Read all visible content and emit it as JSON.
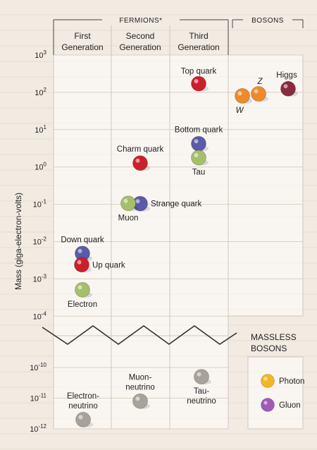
{
  "header": {
    "fermions": "FERMIONS*",
    "bosons": "BOSONS",
    "generations": [
      [
        "First",
        "Generation"
      ],
      [
        "Second",
        "Generation"
      ],
      [
        "Third",
        "Generation"
      ]
    ],
    "massless_title": [
      "MASSLESS",
      "BOSONS"
    ]
  },
  "chart_data": {
    "type": "scatter",
    "ylabel": "Mass (giga-electron-volts)",
    "yscale": "log",
    "upper_range": [
      0.0001,
      1000
    ],
    "lower_range": [
      1e-12,
      1e-10
    ],
    "ticks": [
      {
        "base": "10",
        "exp": "3",
        "value": 1000
      },
      {
        "base": "10",
        "exp": "2",
        "value": 100
      },
      {
        "base": "10",
        "exp": "1",
        "value": 10
      },
      {
        "base": "10",
        "exp": "0",
        "value": 1
      },
      {
        "base": "10",
        "exp": "-1",
        "value": 0.1
      },
      {
        "base": "10",
        "exp": "-2",
        "value": 0.01
      },
      {
        "base": "10",
        "exp": "-3",
        "value": 0.001
      },
      {
        "base": "10",
        "exp": "-4",
        "value": 0.0001
      },
      {
        "base": "10",
        "exp": "-10",
        "value": 1e-10
      },
      {
        "base": "10",
        "exp": "-11",
        "value": 1e-11
      },
      {
        "base": "10",
        "exp": "-12",
        "value": 1e-12
      }
    ],
    "columns": [
      "First Generation",
      "Second Generation",
      "Third Generation",
      "Bosons"
    ],
    "particles": [
      {
        "name": "Down quark",
        "label": [
          "Down quark"
        ],
        "column": 0,
        "mass": 0.0048,
        "color": "#5a5aa8",
        "anchor": "above"
      },
      {
        "name": "Up quark",
        "label": [
          "Up quark"
        ],
        "column": 0,
        "mass": 0.0024,
        "color": "#cc1f2e",
        "anchor": "right"
      },
      {
        "name": "Electron",
        "label": [
          "Electron"
        ],
        "column": 0,
        "mass": 0.000511,
        "color": "#a6bf6a",
        "anchor": "below"
      },
      {
        "name": "Charm quark",
        "label": [
          "Charm quark"
        ],
        "column": 1,
        "mass": 1.27,
        "color": "#cc1f2e",
        "anchor": "above"
      },
      {
        "name": "Strange quark",
        "label": [
          "Strange quark"
        ],
        "column": 1,
        "mass": 0.104,
        "color": "#5a5aa8",
        "anchor": "right"
      },
      {
        "name": "Muon",
        "label": [
          "Muon"
        ],
        "column": 1,
        "mass": 0.1057,
        "color": "#a6bf6a",
        "anchor": "below"
      },
      {
        "name": "Top quark",
        "label": [
          "Top quark"
        ],
        "column": 2,
        "mass": 171,
        "color": "#cc1f2e",
        "anchor": "above"
      },
      {
        "name": "Bottom quark",
        "label": [
          "Bottom quark"
        ],
        "column": 2,
        "mass": 4.2,
        "color": "#5a5aa8",
        "anchor": "above"
      },
      {
        "name": "Tau",
        "label": [
          "Tau"
        ],
        "column": 2,
        "mass": 1.777,
        "color": "#a6bf6a",
        "anchor": "below"
      },
      {
        "name": "W",
        "label": [
          "W"
        ],
        "column": 3,
        "mass": 80.4,
        "color": "#ee8a2a",
        "anchor": "below"
      },
      {
        "name": "Z",
        "label": [
          "Z"
        ],
        "column": 3,
        "mass": 91.2,
        "color": "#ee8a2a",
        "anchor": "above"
      },
      {
        "name": "Higgs",
        "label": [
          "Higgs"
        ],
        "column": 3,
        "mass": 125,
        "color": "#8a2a3e",
        "anchor": "above"
      },
      {
        "name": "Electron-neutrino",
        "label": [
          "Electron-",
          "neutrino"
        ],
        "column": 0,
        "mass": 2e-12,
        "color": "#a8a39a",
        "anchor": "above"
      },
      {
        "name": "Muon-neutrino",
        "label": [
          "Muon-",
          "neutrino"
        ],
        "column": 1,
        "mass": 8e-12,
        "color": "#a8a39a",
        "anchor": "above"
      },
      {
        "name": "Tau-neutrino",
        "label": [
          "Tau-",
          "neutrino"
        ],
        "column": 2,
        "mass": 5e-11,
        "color": "#a8a39a",
        "anchor": "below"
      }
    ],
    "massless": [
      {
        "name": "Photon",
        "color": "#f2b824"
      },
      {
        "name": "Gluon",
        "color": "#a05ab8"
      }
    ]
  }
}
